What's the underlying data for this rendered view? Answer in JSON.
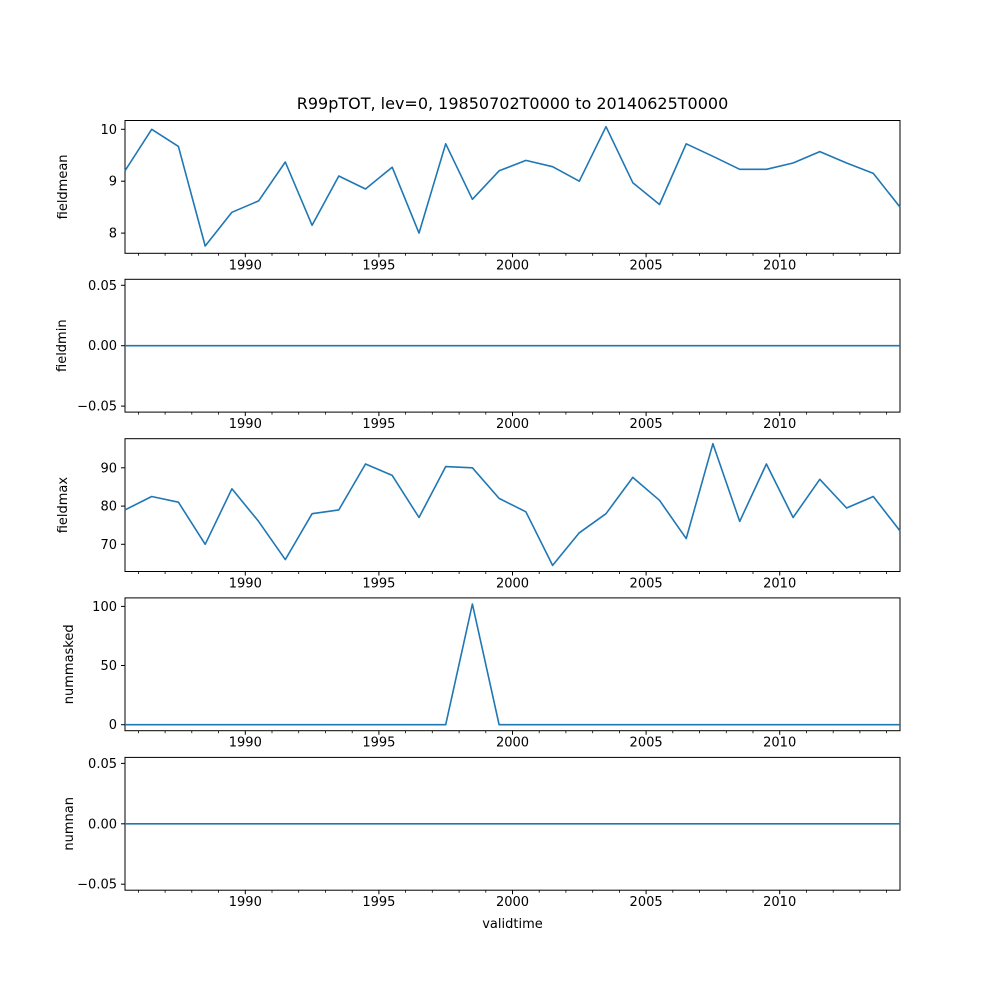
{
  "figure": {
    "title": "R99pTOT, lev=0, 19850702T0000 to 20140625T0000",
    "xlabel": "validtime",
    "background": "#ffffff",
    "line_color": "#1f77b4",
    "spine_color": "#000000"
  },
  "chart_data": {
    "type": "line",
    "title": "R99pTOT, lev=0, 19850702T0000 to 20140625T0000",
    "xlabel": "validtime",
    "legend": "none",
    "grid": false,
    "line_color": "#1f77b4",
    "xlim": [
      1985.5,
      2014.5
    ],
    "xticks": [
      1990,
      1995,
      2000,
      2005,
      2010
    ],
    "xtick_labels": [
      "1990",
      "1995",
      "2000",
      "2005",
      "2010"
    ],
    "x": [
      1985.5,
      1986.5,
      1987.5,
      1988.5,
      1989.5,
      1990.5,
      1991.5,
      1992.5,
      1993.5,
      1994.5,
      1995.5,
      1996.5,
      1997.5,
      1998.5,
      1999.5,
      2000.5,
      2001.5,
      2002.5,
      2003.5,
      2004.5,
      2005.5,
      2006.5,
      2007.5,
      2008.5,
      2009.5,
      2010.5,
      2011.5,
      2012.5,
      2013.5,
      2014.5
    ],
    "subplots": [
      {
        "ylabel": "fieldmean",
        "ylim": [
          7.61,
          10.17
        ],
        "yticks": [
          8,
          9,
          10
        ],
        "ytick_labels": [
          "8",
          "9",
          "10"
        ],
        "values": [
          9.2,
          10.0,
          9.67,
          7.75,
          8.4,
          8.62,
          9.37,
          8.15,
          9.1,
          8.85,
          9.27,
          8.0,
          9.72,
          8.65,
          9.2,
          9.4,
          9.28,
          9.0,
          10.05,
          8.97,
          8.55,
          9.72,
          9.48,
          9.23,
          9.23,
          9.35,
          9.57,
          9.35,
          9.15,
          8.5
        ]
      },
      {
        "ylabel": "fieldmin",
        "ylim": [
          -0.055,
          0.055
        ],
        "yticks": [
          -0.05,
          0.0,
          0.05
        ],
        "ytick_labels": [
          "−0.05",
          "0.00",
          "0.05"
        ],
        "values": [
          0,
          0,
          0,
          0,
          0,
          0,
          0,
          0,
          0,
          0,
          0,
          0,
          0,
          0,
          0,
          0,
          0,
          0,
          0,
          0,
          0,
          0,
          0,
          0,
          0,
          0,
          0,
          0,
          0,
          0
        ]
      },
      {
        "ylabel": "fieldmax",
        "ylim": [
          62.9,
          97.6
        ],
        "yticks": [
          70,
          80,
          90
        ],
        "ytick_labels": [
          "70",
          "80",
          "90"
        ],
        "values": [
          79,
          82.5,
          81,
          70,
          84.5,
          76,
          66,
          78,
          79,
          91,
          88,
          77,
          90.3,
          90,
          82,
          78.5,
          64.5,
          73,
          78,
          87.5,
          81.5,
          71.5,
          96.3,
          76,
          91,
          77,
          87,
          79.5,
          82.5,
          73.5
        ]
      },
      {
        "ylabel": "nummasked",
        "ylim": [
          -5.1,
          107.2
        ],
        "yticks": [
          0,
          50,
          100
        ],
        "ytick_labels": [
          "0",
          "50",
          "100"
        ],
        "values": [
          0,
          0,
          0,
          0,
          0,
          0,
          0,
          0,
          0,
          0,
          0,
          0,
          0,
          102,
          0,
          0,
          0,
          0,
          0,
          0,
          0,
          0,
          0,
          0,
          0,
          0,
          0,
          0,
          0,
          0
        ]
      },
      {
        "ylabel": "numnan",
        "ylim": [
          -0.055,
          0.055
        ],
        "yticks": [
          -0.05,
          0.0,
          0.05
        ],
        "ytick_labels": [
          "−0.05",
          "0.00",
          "0.05"
        ],
        "values": [
          0,
          0,
          0,
          0,
          0,
          0,
          0,
          0,
          0,
          0,
          0,
          0,
          0,
          0,
          0,
          0,
          0,
          0,
          0,
          0,
          0,
          0,
          0,
          0,
          0,
          0,
          0,
          0,
          0,
          0
        ]
      }
    ]
  }
}
